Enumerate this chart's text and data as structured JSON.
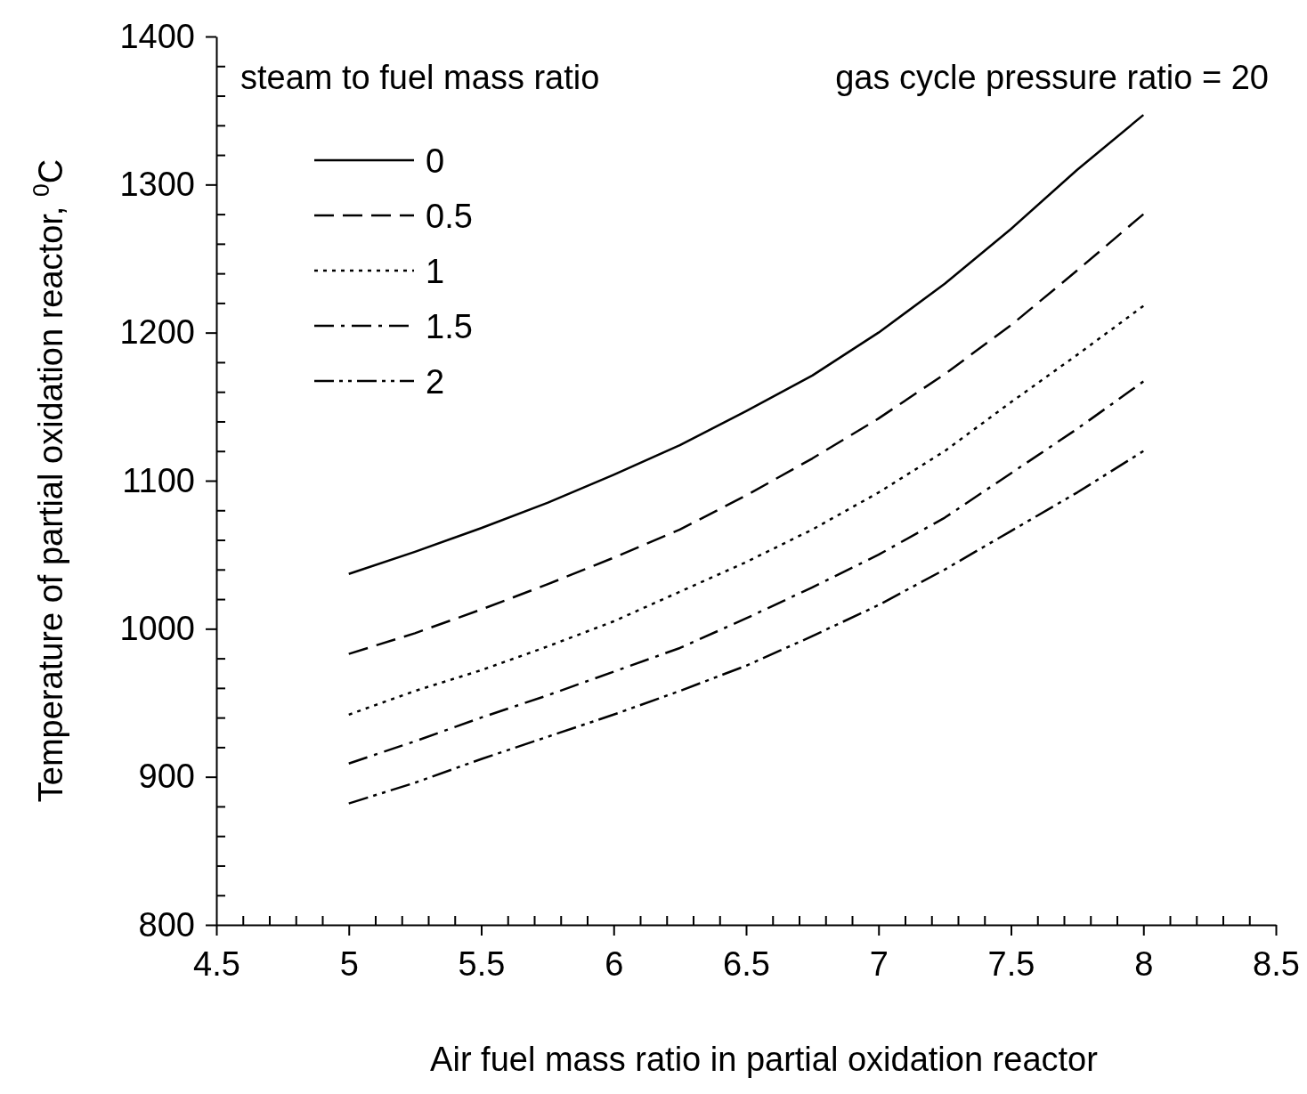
{
  "chart_data": {
    "type": "line",
    "xlabel": "Air fuel mass ratio in partial oxidation reactor",
    "ylabel": "Temperature of partial oxidation reactor, $^{0}$C",
    "legend_title": "steam to fuel mass ratio",
    "annotations": [
      "gas cycle pressure ratio = 20"
    ],
    "x": [
      5,
      5.25,
      5.5,
      5.75,
      6,
      6.25,
      6.5,
      6.75,
      7,
      7.25,
      7.5,
      7.75,
      8
    ],
    "xlim": [
      4.5,
      8.5
    ],
    "xticks": [
      4.5,
      5,
      5.5,
      6,
      6.5,
      7,
      7.5,
      8,
      8.5
    ],
    "ylim": [
      800,
      1400
    ],
    "yticks": [
      800,
      900,
      1000,
      1100,
      1200,
      1300,
      1400
    ],
    "legend": "top left",
    "series": [
      {
        "name": "0",
        "color": "#000000",
        "line_style": "solid",
        "values": [
          1037,
          1052,
          1068,
          1085,
          1104,
          1124,
          1147,
          1171,
          1200,
          1233,
          1270,
          1310,
          1347
        ]
      },
      {
        "name": "0.5",
        "color": "#000000",
        "line_style": "dashed",
        "values": [
          983,
          997,
          1013,
          1030,
          1048,
          1067,
          1090,
          1115,
          1142,
          1172,
          1205,
          1242,
          1280
        ]
      },
      {
        "name": "1",
        "color": "#000000",
        "line_style": "dotted",
        "values": [
          942,
          958,
          972,
          988,
          1005,
          1025,
          1045,
          1067,
          1092,
          1120,
          1153,
          1185,
          1218
        ]
      },
      {
        "name": "1.5",
        "color": "#000000",
        "line_style": "dashdot",
        "values": [
          909,
          924,
          940,
          955,
          971,
          987,
          1007,
          1028,
          1050,
          1075,
          1105,
          1135,
          1167
        ]
      },
      {
        "name": "2",
        "color": "#000000",
        "line_style": "dashdotdot",
        "values": [
          882,
          896,
          912,
          927,
          942,
          958,
          975,
          995,
          1016,
          1040,
          1066,
          1092,
          1120
        ]
      }
    ]
  }
}
